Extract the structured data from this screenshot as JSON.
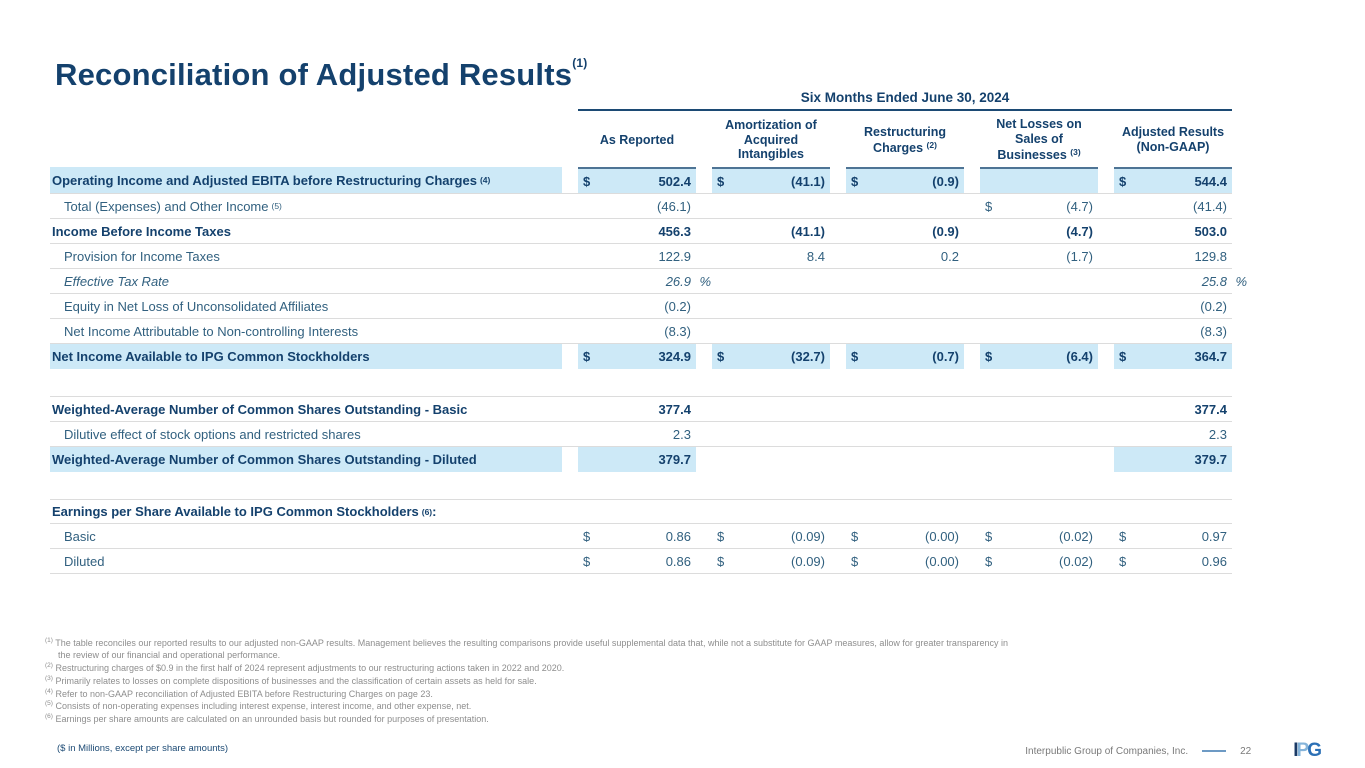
{
  "title": {
    "text": "Reconciliation of Adjusted Results",
    "sup": "(1)"
  },
  "table": {
    "period_header": "Six Months Ended June 30, 2024",
    "columns": [
      {
        "label": "As Reported",
        "sup": ""
      },
      {
        "label": "Amortization of Acquired Intangibles",
        "sup": ""
      },
      {
        "label": "Restructuring Charges",
        "sup": "(2)"
      },
      {
        "label": "Net Losses on Sales of Businesses",
        "sup": "(3)"
      },
      {
        "label": "Adjusted Results (Non-GAAP)",
        "sup": ""
      }
    ],
    "rows": [
      {
        "label": "Operating Income and Adjusted EBITA before Restructuring Charges",
        "sup": "(4)",
        "bold": true,
        "highlight": true,
        "topAccent": true,
        "cells": [
          {
            "d": "$",
            "v": "502.4",
            "hl": true
          },
          {
            "d": "$",
            "v": "(41.1)",
            "hl": true
          },
          {
            "d": "$",
            "v": "(0.9)",
            "hl": true
          },
          {
            "v": "",
            "hl": true
          },
          {
            "d": "$",
            "v": "544.4",
            "hl": true
          }
        ]
      },
      {
        "label": "Total (Expenses) and Other Income",
        "sup": "(5)",
        "indent": true,
        "sepTop": true,
        "cells": [
          {
            "v": "(46.1)"
          },
          {
            "v": ""
          },
          {
            "v": ""
          },
          {
            "d": "$",
            "v": "(4.7)"
          },
          {
            "v": "(41.4)"
          }
        ]
      },
      {
        "label": "Income Before Income Taxes",
        "bold": true,
        "sepTop": true,
        "cells": [
          {
            "v": "456.3"
          },
          {
            "v": "(41.1)"
          },
          {
            "v": "(0.9)"
          },
          {
            "v": "(4.7)"
          },
          {
            "v": "503.0"
          }
        ]
      },
      {
        "label": "Provision for Income Taxes",
        "indent": true,
        "sepTop": true,
        "cells": [
          {
            "v": "122.9"
          },
          {
            "v": "8.4"
          },
          {
            "v": "0.2"
          },
          {
            "v": "(1.7)"
          },
          {
            "v": "129.8"
          }
        ]
      },
      {
        "label": "Effective Tax Rate",
        "indent": true,
        "italic": true,
        "sepTop": true,
        "cells": [
          {
            "v": "26.9",
            "pct": true
          },
          {
            "v": ""
          },
          {
            "v": ""
          },
          {
            "v": ""
          },
          {
            "v": "25.8",
            "pct": true
          }
        ]
      },
      {
        "label": "Equity in Net Loss of Unconsolidated Affiliates",
        "indent": true,
        "sepTop": true,
        "cells": [
          {
            "v": "(0.2)"
          },
          {
            "v": ""
          },
          {
            "v": ""
          },
          {
            "v": ""
          },
          {
            "v": "(0.2)"
          }
        ]
      },
      {
        "label": "Net Income Attributable to Non-controlling Interests",
        "indent": true,
        "sepTop": true,
        "cells": [
          {
            "v": "(8.3)"
          },
          {
            "v": ""
          },
          {
            "v": ""
          },
          {
            "v": ""
          },
          {
            "v": "(8.3)"
          }
        ]
      },
      {
        "label": "Net Income Available to IPG Common Stockholders",
        "bold": true,
        "highlight": true,
        "sepTop": true,
        "cells": [
          {
            "d": "$",
            "v": "324.9",
            "hl": true
          },
          {
            "d": "$",
            "v": "(32.7)",
            "hl": true
          },
          {
            "d": "$",
            "v": "(0.7)",
            "hl": true
          },
          {
            "d": "$",
            "v": "(6.4)",
            "hl": true
          },
          {
            "d": "$",
            "v": "364.7",
            "hl": true
          }
        ]
      },
      {
        "label": "Weighted-Average Number of Common Shares Outstanding - Basic",
        "bold": true,
        "sepTop": true,
        "gapBefore": true,
        "cells": [
          {
            "v": "377.4"
          },
          {
            "v": ""
          },
          {
            "v": ""
          },
          {
            "v": ""
          },
          {
            "v": "377.4"
          }
        ]
      },
      {
        "label": "Dilutive effect of stock options and restricted shares",
        "indent": true,
        "sepTop": true,
        "cells": [
          {
            "v": "2.3"
          },
          {
            "v": ""
          },
          {
            "v": ""
          },
          {
            "v": ""
          },
          {
            "v": "2.3"
          }
        ]
      },
      {
        "label": "Weighted-Average Number of Common Shares Outstanding - Diluted",
        "bold": true,
        "highlight": true,
        "sepTop": true,
        "cells": [
          {
            "v": "379.7",
            "hl": true
          },
          {
            "v": ""
          },
          {
            "v": ""
          },
          {
            "v": ""
          },
          {
            "v": "379.7",
            "hl": true
          }
        ]
      },
      {
        "label": "Earnings per Share Available to IPG Common Stockholders",
        "sup": "(6)",
        "colon": true,
        "bold": true,
        "sepTop": true,
        "sepBottom": true,
        "gapBefore": true,
        "cells": []
      },
      {
        "label": "Basic",
        "indent": true,
        "sepBottom": true,
        "cells": [
          {
            "d": "$",
            "v": "0.86"
          },
          {
            "d": "$",
            "v": "(0.09)"
          },
          {
            "d": "$",
            "v": "(0.00)"
          },
          {
            "d": "$",
            "v": "(0.02)"
          },
          {
            "d": "$",
            "v": "0.97"
          }
        ]
      },
      {
        "label": "Diluted",
        "indent": true,
        "sepBottom": true,
        "cells": [
          {
            "d": "$",
            "v": "0.86"
          },
          {
            "d": "$",
            "v": "(0.09)"
          },
          {
            "d": "$",
            "v": "(0.00)"
          },
          {
            "d": "$",
            "v": "(0.02)"
          },
          {
            "d": "$",
            "v": "0.96"
          }
        ]
      }
    ]
  },
  "footnotes": [
    {
      "n": "(1)",
      "text": "The table reconciles our reported results to our adjusted non-GAAP results. Management believes the resulting comparisons provide useful supplemental data that, while not a substitute for GAAP measures, allow for greater transparency in the review of our financial and operational performance."
    },
    {
      "n": "(2)",
      "text": "Restructuring charges of $0.9 in the first half of 2024 represent adjustments to our restructuring actions taken in 2022 and 2020."
    },
    {
      "n": "(3)",
      "text": "Primarily relates to losses on complete dispositions of businesses and the classification of certain assets as held for sale."
    },
    {
      "n": "(4)",
      "text": "Refer to non-GAAP reconciliation of Adjusted EBITA before Restructuring Charges on page 23."
    },
    {
      "n": "(5)",
      "text": "Consists of non-operating expenses including interest expense, interest income, and other expense, net."
    },
    {
      "n": "(6)",
      "text": "Earnings per share amounts are calculated on an unrounded basis but rounded for purposes of presentation."
    }
  ],
  "footer": {
    "left_note": "($ in Millions, except per share amounts)",
    "company": "Interpublic Group of Companies, Inc.",
    "page": "22",
    "logo": {
      "i": "I",
      "p": "P",
      "g": "G"
    }
  },
  "colors": {
    "accent_navy": "#14416d",
    "regular_text": "#31607f",
    "highlight_blue": "#cde9f7",
    "cell_top_border": "#4e7495",
    "separator_gray": "#dcdcdc",
    "footnote_gray": "#8e8e8e"
  }
}
